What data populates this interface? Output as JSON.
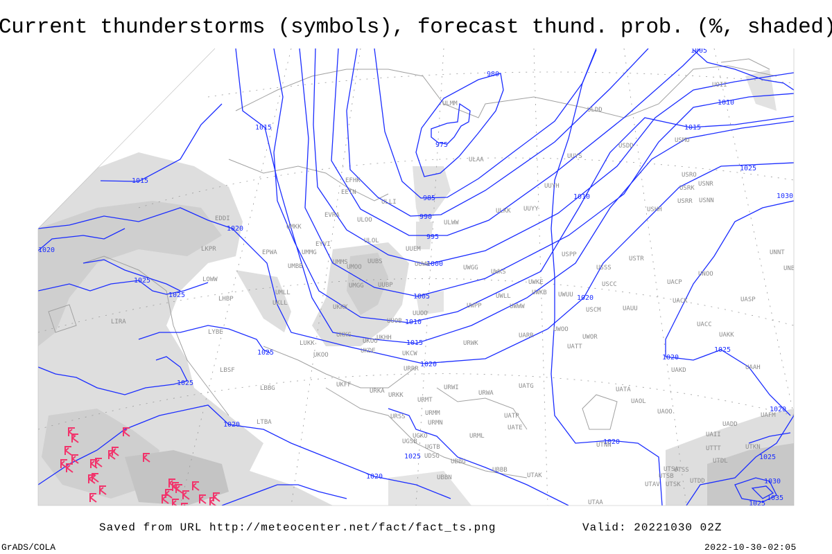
{
  "title": "Current thunderstorms (symbols), forecast thund. prob. (%, shaded)",
  "footer": {
    "saved": "Saved from URL http://meteocenter.net/fact/fact_ts.png",
    "valid": "Valid: 20221030 02Z",
    "software": "GrADS/COLA",
    "timestamp": "2022-10-30-02:05"
  },
  "colors": {
    "isobars": "#1a2cff",
    "thunderstorm_symbols": "#f2336b",
    "shading_light": "#dedede",
    "shading_dark": "#c4c4c4",
    "coastlines": "#a0a0a0"
  },
  "icons": {
    "thunderstorm": "thunderstorm-symbol-icon"
  },
  "isobar_labels": [
    "975",
    "980",
    "985",
    "990",
    "995",
    "1000",
    "1005",
    "1010",
    "1015",
    "1020",
    "1005",
    "1015",
    "1015",
    "1015",
    "1010",
    "1010",
    "1020",
    "1020",
    "1020",
    "1020",
    "1020",
    "1020",
    "1025",
    "1025",
    "1025",
    "1025",
    "1025",
    "1025",
    "1025",
    "1030",
    "1030",
    "1035",
    "1020",
    "1025",
    "1025",
    "1020"
  ],
  "stations": [
    "EDDI",
    "LKPR",
    "EPWA",
    "UMMG",
    "UMBB",
    "LOWW",
    "UMLL",
    "UKLL",
    "LHBP",
    "LYBE",
    "UKKK",
    "UMMS",
    "UMOO",
    "UUBS",
    "UMGG",
    "UUBP",
    "UUOO",
    "UUOB",
    "UKHH",
    "UKOO",
    "UKKG",
    "UKDE",
    "UKCW",
    "URRR",
    "LUKK",
    "UKOO",
    "LBSF",
    "LBBG",
    "UKFF",
    "URKA",
    "URKK",
    "URMT",
    "URMM",
    "URMN",
    "URWI",
    "URWA",
    "UATG",
    "UATP",
    "UATE",
    "URML",
    "URSS",
    "UGKO",
    "UGSB",
    "UGTB",
    "UDSG",
    "UBBG",
    "UBBB",
    "UBBN",
    "UTAK",
    "UTAA",
    "UTNN",
    "UATA",
    "UAOL",
    "UAOO",
    "UADD",
    "UAFM",
    "UAII",
    "UTTT",
    "UTKN",
    "UTDL",
    "UTSA",
    "UTSB",
    "UTSS",
    "UTAV",
    "UTSK",
    "UTDD",
    "LTBA",
    "EVRA",
    "ULOO",
    "ULOL",
    "EETN",
    "EFHK",
    "ULLI",
    "UUEM",
    "UUWW",
    "UWGG",
    "UWPP",
    "UWKS",
    "UWKE",
    "UWKB",
    "UWUU",
    "UWWW",
    "UWLL",
    "UUYY",
    "UUYH",
    "UUYS",
    "ULKK",
    "ULWW",
    "ULAA",
    "ULMM",
    "ULDD",
    "USDD",
    "USMU",
    "USRO",
    "USRK",
    "USNR",
    "USRR",
    "USNN",
    "USHH",
    "USPP",
    "USTR",
    "USSS",
    "USCC",
    "USCM",
    "UAUU",
    "UACP",
    "UACK",
    "UNOO",
    "UNNT",
    "UNBB",
    "UASP",
    "UACC",
    "UAKK",
    "UAAH",
    "UAKD",
    "UWOO",
    "UWOR",
    "UATT",
    "UARR",
    "URWK",
    "UOII",
    "EYVI",
    "UMKK",
    "LIRA"
  ]
}
